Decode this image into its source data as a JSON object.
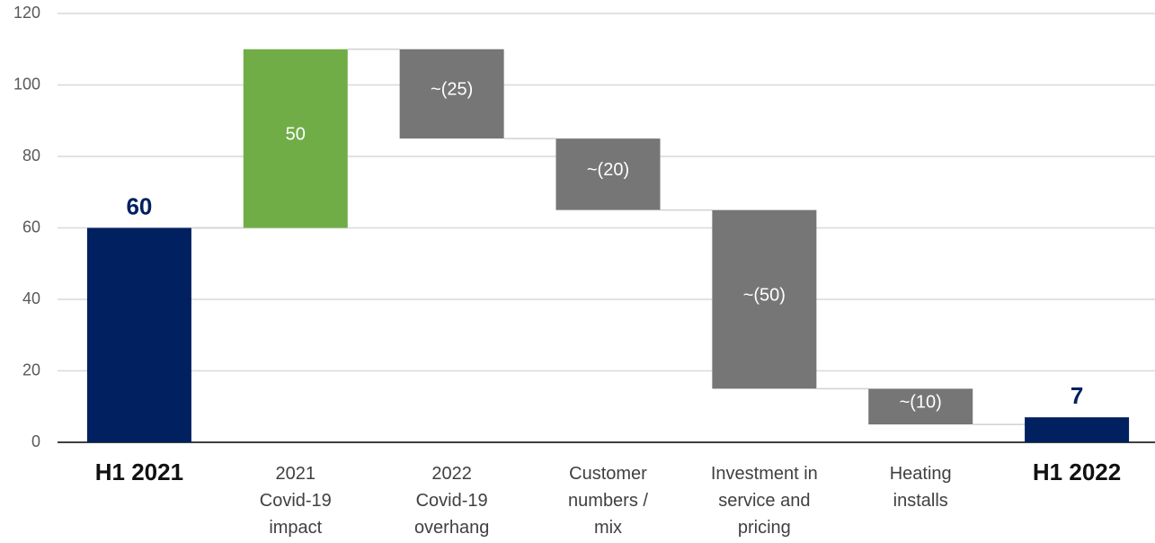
{
  "chart_data": {
    "type": "waterfall",
    "categories": [
      "H1 2021",
      "2021\nCovid-19\nimpact",
      "2022\nCovid-19\noverhang",
      "Customer\nnumbers /\nmix",
      "Investment in\nservice and\npricing",
      "Heating\ninstalls",
      "H1 2022"
    ],
    "measure": [
      "total",
      "relative",
      "relative",
      "relative",
      "relative",
      "relative",
      "total"
    ],
    "values": [
      60,
      50,
      -25,
      -20,
      -50,
      -10,
      7
    ],
    "value_labels": [
      "60",
      "50",
      "~(25)",
      "~(20)",
      "~(50)",
      "~(10)",
      "7"
    ],
    "colors": {
      "total": "#002060",
      "increase": "#70ad47",
      "decrease": "#767676"
    },
    "ylim": [
      0,
      120
    ],
    "yticks": [
      0,
      20,
      40,
      60,
      80,
      100,
      120
    ],
    "grid": true
  }
}
